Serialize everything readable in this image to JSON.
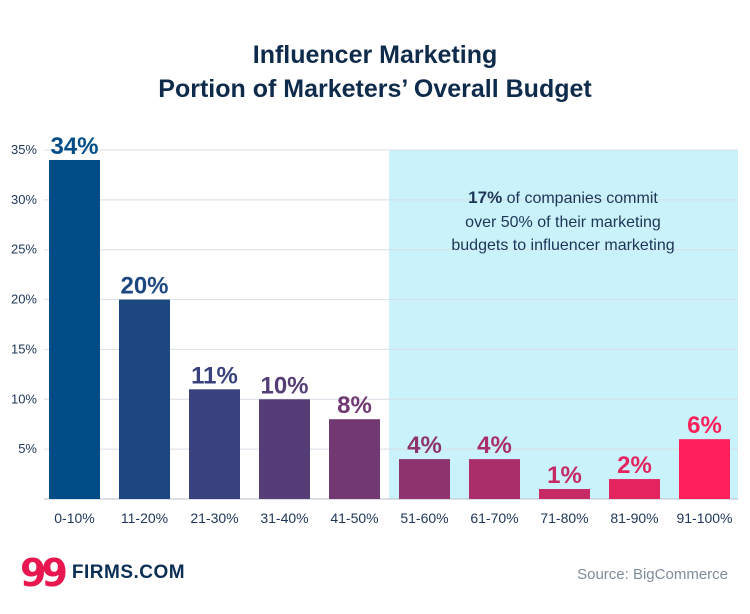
{
  "title": {
    "line1": "Influencer Marketing",
    "line2": "Portion of Marketers’ Overall Budget"
  },
  "annotation": {
    "highlight": "17%",
    "line1_rest": " of companies commit",
    "line2": "over 50% of their marketing",
    "line3": "budgets to influencer marketing"
  },
  "logo": {
    "mark": "99",
    "text": "FIRMS.COM"
  },
  "source": "Source: BigCommerce",
  "colors": {
    "bar_start": "#004c86",
    "bar_end": "#ff1f5a",
    "highlight_band": "#c9f2fa",
    "title": "#0f2b4c",
    "axis_text": "#1e3557"
  },
  "chart_data": {
    "type": "bar",
    "title": "Influencer Marketing Portion of Marketers’ Overall Budget",
    "xlabel": "",
    "ylabel": "",
    "categories": [
      "0-10%",
      "11-20%",
      "21-30%",
      "31-40%",
      "41-50%",
      "51-60%",
      "61-70%",
      "71-80%",
      "81-90%",
      "91-100%"
    ],
    "values": [
      34,
      20,
      11,
      10,
      8,
      4,
      4,
      1,
      2,
      6
    ],
    "value_labels": [
      "34%",
      "20%",
      "11%",
      "10%",
      "8%",
      "4%",
      "4%",
      "1%",
      "2%",
      "6%"
    ],
    "ylim": [
      0,
      35
    ],
    "yticks": [
      5,
      10,
      15,
      20,
      25,
      30,
      35
    ],
    "ytick_labels": [
      "5%",
      "10%",
      "15%",
      "20%",
      "25%",
      "30%",
      "35%"
    ],
    "highlight_categories": [
      "51-60%",
      "61-70%",
      "71-80%",
      "81-90%",
      "91-100%"
    ],
    "grid": true,
    "legend": "none"
  }
}
